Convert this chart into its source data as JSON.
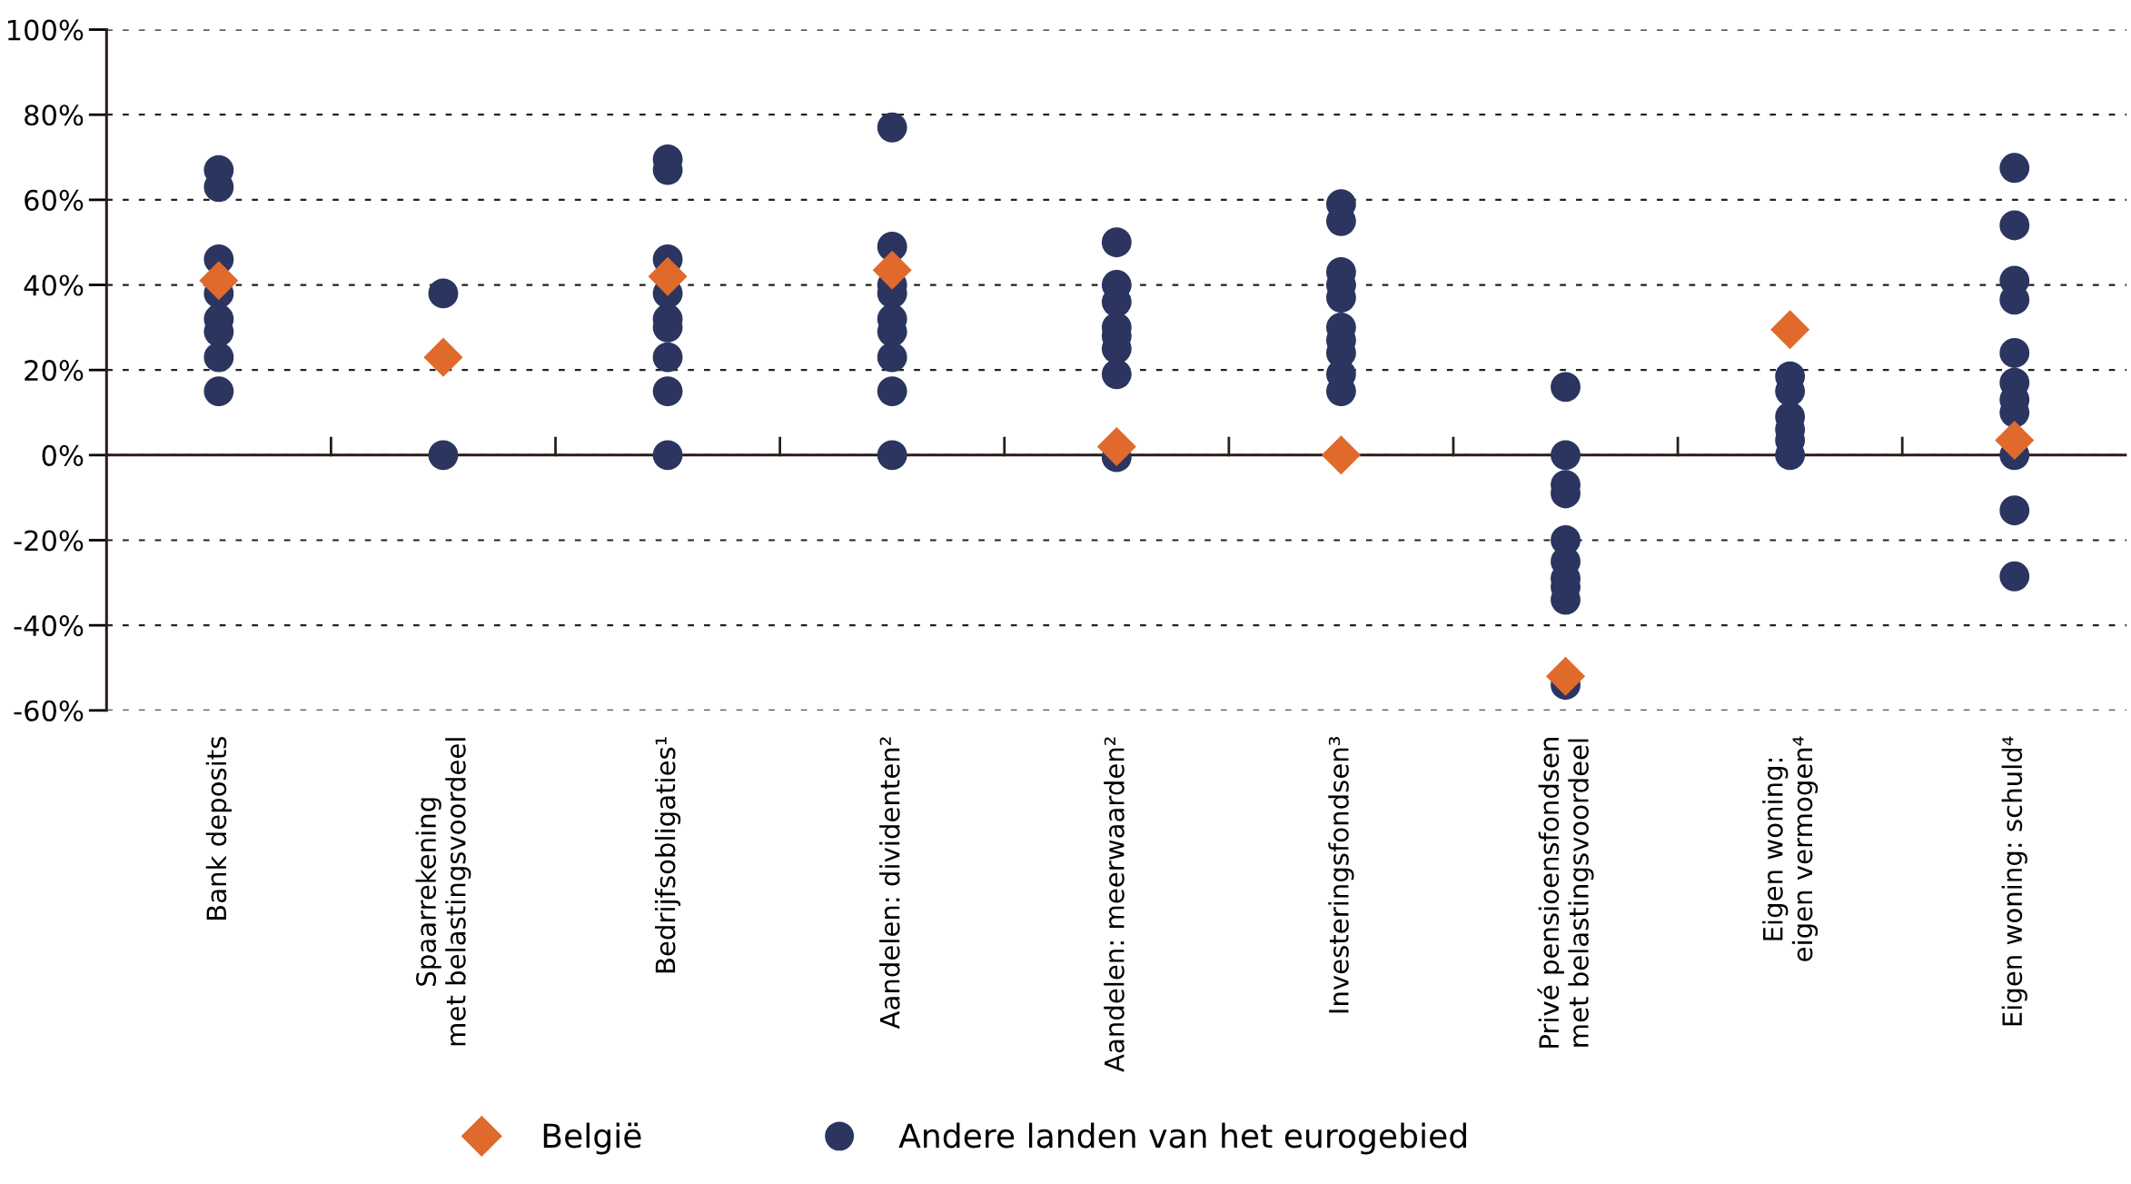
{
  "chart_data": {
    "type": "scatter",
    "categories": [
      "Bank deposits",
      "Spaarrekening\nmet belastingsvoordeel",
      "Bedrijfsobligaties¹",
      "Aandelen: dividenten²",
      "Aandelen: meerwaarden²",
      "Investeringsfondsen³",
      "Privé pensioensfondsen\nmet belastingsvoordeel",
      "Eigen woning:\neigen vermogen⁴",
      "Eigen woning: schuld⁴"
    ],
    "series": [
      {
        "name": "Andere landen van het eurogebied",
        "color": "#2b3560",
        "marker": "circle",
        "x": [
          "Bank deposits",
          "Bank deposits",
          "Bank deposits",
          "Bank deposits",
          "Bank deposits",
          "Bank deposits",
          "Bank deposits",
          "Bank deposits",
          "Spaarrekening\nmet belastingsvoordeel",
          "Spaarrekening\nmet belastingsvoordeel",
          "Bedrijfsobligaties¹",
          "Bedrijfsobligaties¹",
          "Bedrijfsobligaties¹",
          "Bedrijfsobligaties¹",
          "Bedrijfsobligaties¹",
          "Bedrijfsobligaties¹",
          "Bedrijfsobligaties¹",
          "Bedrijfsobligaties¹",
          "Bedrijfsobligaties¹",
          "Aandelen: dividenten²",
          "Aandelen: dividenten²",
          "Aandelen: dividenten²",
          "Aandelen: dividenten²",
          "Aandelen: dividenten²",
          "Aandelen: dividenten²",
          "Aandelen: dividenten²",
          "Aandelen: dividenten²",
          "Aandelen: dividenten²",
          "Aandelen: meerwaarden²",
          "Aandelen: meerwaarden²",
          "Aandelen: meerwaarden²",
          "Aandelen: meerwaarden²",
          "Aandelen: meerwaarden²",
          "Aandelen: meerwaarden²",
          "Aandelen: meerwaarden²",
          "Aandelen: meerwaarden²",
          "Investeringsfondsen³",
          "Investeringsfondsen³",
          "Investeringsfondsen³",
          "Investeringsfondsen³",
          "Investeringsfondsen³",
          "Investeringsfondsen³",
          "Investeringsfondsen³",
          "Investeringsfondsen³",
          "Investeringsfondsen³",
          "Investeringsfondsen³",
          "Privé pensioensfondsen\nmet belastingsvoordeel",
          "Privé pensioensfondsen\nmet belastingsvoordeel",
          "Privé pensioensfondsen\nmet belastingsvoordeel",
          "Privé pensioensfondsen\nmet belastingsvoordeel",
          "Privé pensioensfondsen\nmet belastingsvoordeel",
          "Privé pensioensfondsen\nmet belastingsvoordeel",
          "Privé pensioensfondsen\nmet belastingsvoordeel",
          "Privé pensioensfondsen\nmet belastingsvoordeel",
          "Privé pensioensfondsen\nmet belastingsvoordeel",
          "Privé pensioensfondsen\nmet belastingsvoordeel",
          "Eigen woning:\neigen vermogen⁴",
          "Eigen woning:\neigen vermogen⁴",
          "Eigen woning:\neigen vermogen⁴",
          "Eigen woning:\neigen vermogen⁴",
          "Eigen woning:\neigen vermogen⁴",
          "Eigen woning:\neigen vermogen⁴",
          "Eigen woning: schuld⁴",
          "Eigen woning: schuld⁴",
          "Eigen woning: schuld⁴",
          "Eigen woning: schuld⁴",
          "Eigen woning: schuld⁴",
          "Eigen woning: schuld⁴",
          "Eigen woning: schuld⁴",
          "Eigen woning: schuld⁴",
          "Eigen woning: schuld⁴",
          "Eigen woning: schuld⁴",
          "Eigen woning: schuld⁴"
        ],
        "values": [
          67,
          63,
          46,
          38,
          32,
          29,
          23,
          15,
          38,
          0,
          69.5,
          67,
          46,
          38,
          32,
          30,
          23,
          15,
          0,
          77,
          49,
          40,
          38,
          32,
          29,
          23,
          15,
          0,
          50,
          40,
          36,
          30,
          28,
          25,
          19,
          -0.5,
          59,
          55,
          43,
          40,
          37,
          30,
          27,
          24,
          19,
          15,
          16,
          0,
          -7,
          -9,
          -20,
          -25,
          -29,
          -31,
          -34,
          -54,
          18.5,
          15,
          9,
          6,
          3.5,
          0,
          67.5,
          54,
          41,
          36.5,
          24,
          17,
          13,
          10,
          0,
          -13,
          -28.5
        ]
      },
      {
        "name": "België",
        "color": "#e06a2b",
        "marker": "diamond",
        "values": [
          41,
          23,
          42,
          43.5,
          2,
          0,
          -52,
          29.5,
          3.5
        ]
      }
    ],
    "ylim": [
      -60,
      100
    ],
    "yticks": [
      {
        "value": -60,
        "label": "-60%"
      },
      {
        "value": -40,
        "label": "-40%"
      },
      {
        "value": -20,
        "label": "-20%"
      },
      {
        "value": 0,
        "label": "0%"
      },
      {
        "value": 20,
        "label": "20%"
      },
      {
        "value": 40,
        "label": "40%"
      },
      {
        "value": 60,
        "label": "60%"
      },
      {
        "value": 80,
        "label": "80%"
      },
      {
        "value": 100,
        "label": "100%"
      }
    ],
    "grid": "y",
    "legend": "bottom",
    "ref_lines": [
      {
        "axis": "y",
        "value": 0,
        "color": "#2b1d17",
        "line_style": "solid"
      }
    ]
  }
}
